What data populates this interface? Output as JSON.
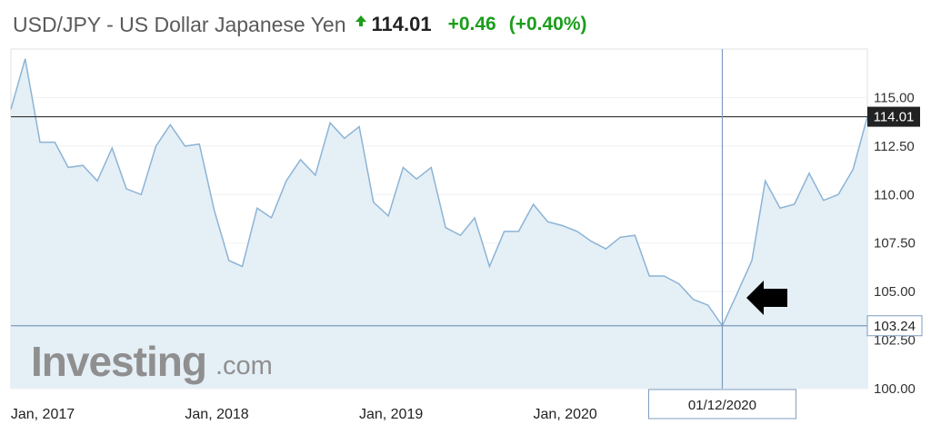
{
  "header": {
    "title": "USD/JPY - US Dollar Japanese Yen",
    "direction_icon": "arrow-up-icon",
    "price": "114.01",
    "change": "+0.46",
    "change_percent": "(+0.40%)",
    "up_color": "#1b9e1b"
  },
  "watermark": {
    "brand": "Investing",
    "suffix": ".com"
  },
  "crosshair": {
    "x_label": "01/12/2020",
    "y_label": "103.24"
  },
  "current_price_label": "114.01",
  "pointer_icon": "arrow-left-icon",
  "colors": {
    "line": "#8cb4d6",
    "fill": "#e4eef5",
    "crosshair": "#7d9cbf",
    "price_line": "#333333"
  },
  "chart_data": {
    "type": "area",
    "x_tick_labels": [
      "Jan, 2017",
      "Jan, 2018",
      "Jan, 2019",
      "Jan, 2020"
    ],
    "y_tick_labels": [
      "115.00",
      "112.50",
      "110.00",
      "107.50",
      "105.00",
      "102.50",
      "100.00"
    ],
    "ylim": [
      100.0,
      117.5
    ],
    "y_ticks": [
      115.0,
      112.5,
      110.0,
      107.5,
      105.0,
      102.5,
      100.0
    ],
    "x_ticks": [
      "2017-01",
      "2018-01",
      "2019-01",
      "2020-01"
    ],
    "crosshair_x": "2020-12",
    "current_price": 114.01,
    "crosshair_price": 103.24,
    "series": [
      {
        "x": [
          "2016-11",
          "2016-12",
          "2017-01",
          "2017-02",
          "2017-03",
          "2017-04",
          "2017-05",
          "2017-06",
          "2017-07",
          "2017-08",
          "2017-09",
          "2017-10",
          "2017-11",
          "2017-12",
          "2018-01",
          "2018-02",
          "2018-03",
          "2018-04",
          "2018-05",
          "2018-06",
          "2018-07",
          "2018-08",
          "2018-09",
          "2018-10",
          "2018-11",
          "2018-12",
          "2019-01",
          "2019-02",
          "2019-03",
          "2019-04",
          "2019-05",
          "2019-06",
          "2019-07",
          "2019-08",
          "2019-09",
          "2019-10",
          "2019-11",
          "2019-12",
          "2020-01",
          "2020-02",
          "2020-03",
          "2020-04",
          "2020-05",
          "2020-06",
          "2020-07",
          "2020-08",
          "2020-09",
          "2020-10",
          "2020-11",
          "2020-12",
          "2021-01",
          "2021-02",
          "2021-03",
          "2021-04",
          "2021-05",
          "2021-06",
          "2021-07",
          "2021-08",
          "2021-09",
          "2021-10"
        ],
        "values": [
          114.4,
          117.0,
          112.7,
          112.7,
          111.4,
          111.5,
          110.7,
          112.4,
          110.3,
          110.0,
          112.5,
          113.6,
          112.5,
          112.6,
          109.2,
          106.6,
          106.3,
          109.3,
          108.8,
          110.7,
          111.8,
          111.0,
          113.7,
          112.9,
          113.5,
          109.6,
          108.9,
          111.4,
          110.8,
          111.4,
          108.3,
          107.9,
          108.8,
          106.3,
          108.1,
          108.1,
          109.5,
          108.6,
          108.4,
          108.1,
          107.6,
          107.2,
          107.8,
          107.9,
          105.8,
          105.8,
          105.4,
          104.6,
          104.3,
          103.24,
          104.9,
          106.6,
          110.7,
          109.3,
          109.5,
          111.1,
          109.7,
          110.0,
          111.3,
          114.01
        ]
      }
    ]
  }
}
